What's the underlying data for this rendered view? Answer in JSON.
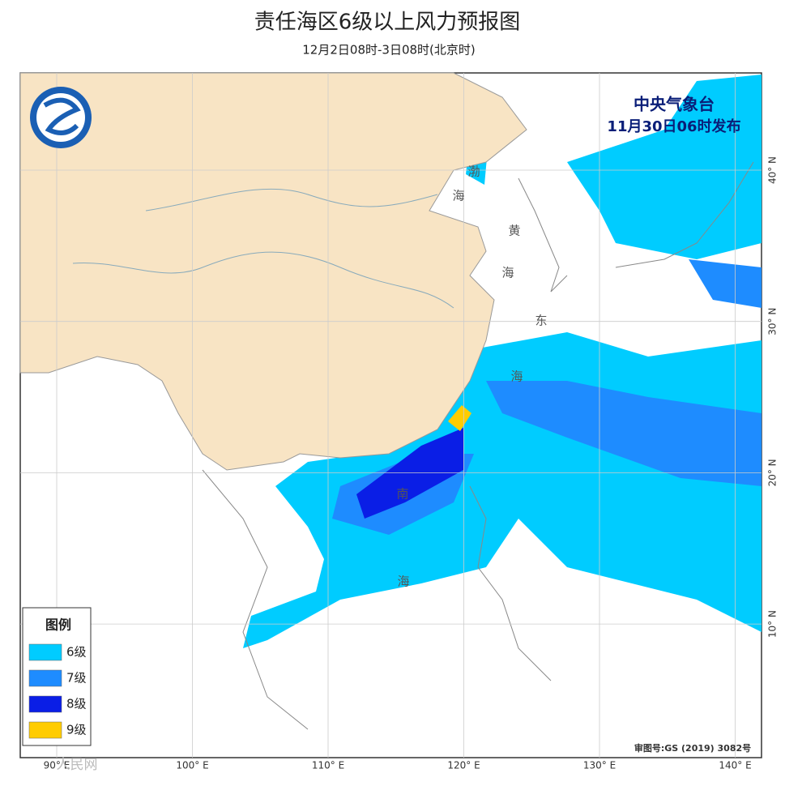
{
  "header": {
    "title": "责任海区6级以上风力预报图",
    "subtitle": "12月2日08时-3日08时(北京时)"
  },
  "issuer": {
    "name": "中央气象台",
    "time": "11月30日06时发布"
  },
  "legend": {
    "title": "图例",
    "items": [
      {
        "label": "6级",
        "color": "#00ccff"
      },
      {
        "label": "7级",
        "color": "#1e8cff"
      },
      {
        "label": "8级",
        "color": "#0a1ee6"
      },
      {
        "label": "9级",
        "color": "#ffcc00"
      }
    ]
  },
  "map": {
    "longitudes": [
      {
        "value": 90,
        "label": "90° E"
      },
      {
        "value": 100,
        "label": "100° E"
      },
      {
        "value": 110,
        "label": "110° E"
      },
      {
        "value": 120,
        "label": "120° E"
      },
      {
        "value": 130,
        "label": "130° E"
      },
      {
        "value": 140,
        "label": "140° E"
      }
    ],
    "latitudes": [
      {
        "value": 40,
        "label": "40° N"
      },
      {
        "value": 30,
        "label": "30° N"
      },
      {
        "value": 20,
        "label": "20° N"
      },
      {
        "value": 10,
        "label": "10° N"
      }
    ],
    "sea_labels": [
      "渤",
      "海",
      "黄",
      "海",
      "东",
      "海",
      "南",
      "海"
    ]
  },
  "footer": {
    "approval": "审图号:GS (2019) 3082号",
    "watermark": "人民网"
  }
}
